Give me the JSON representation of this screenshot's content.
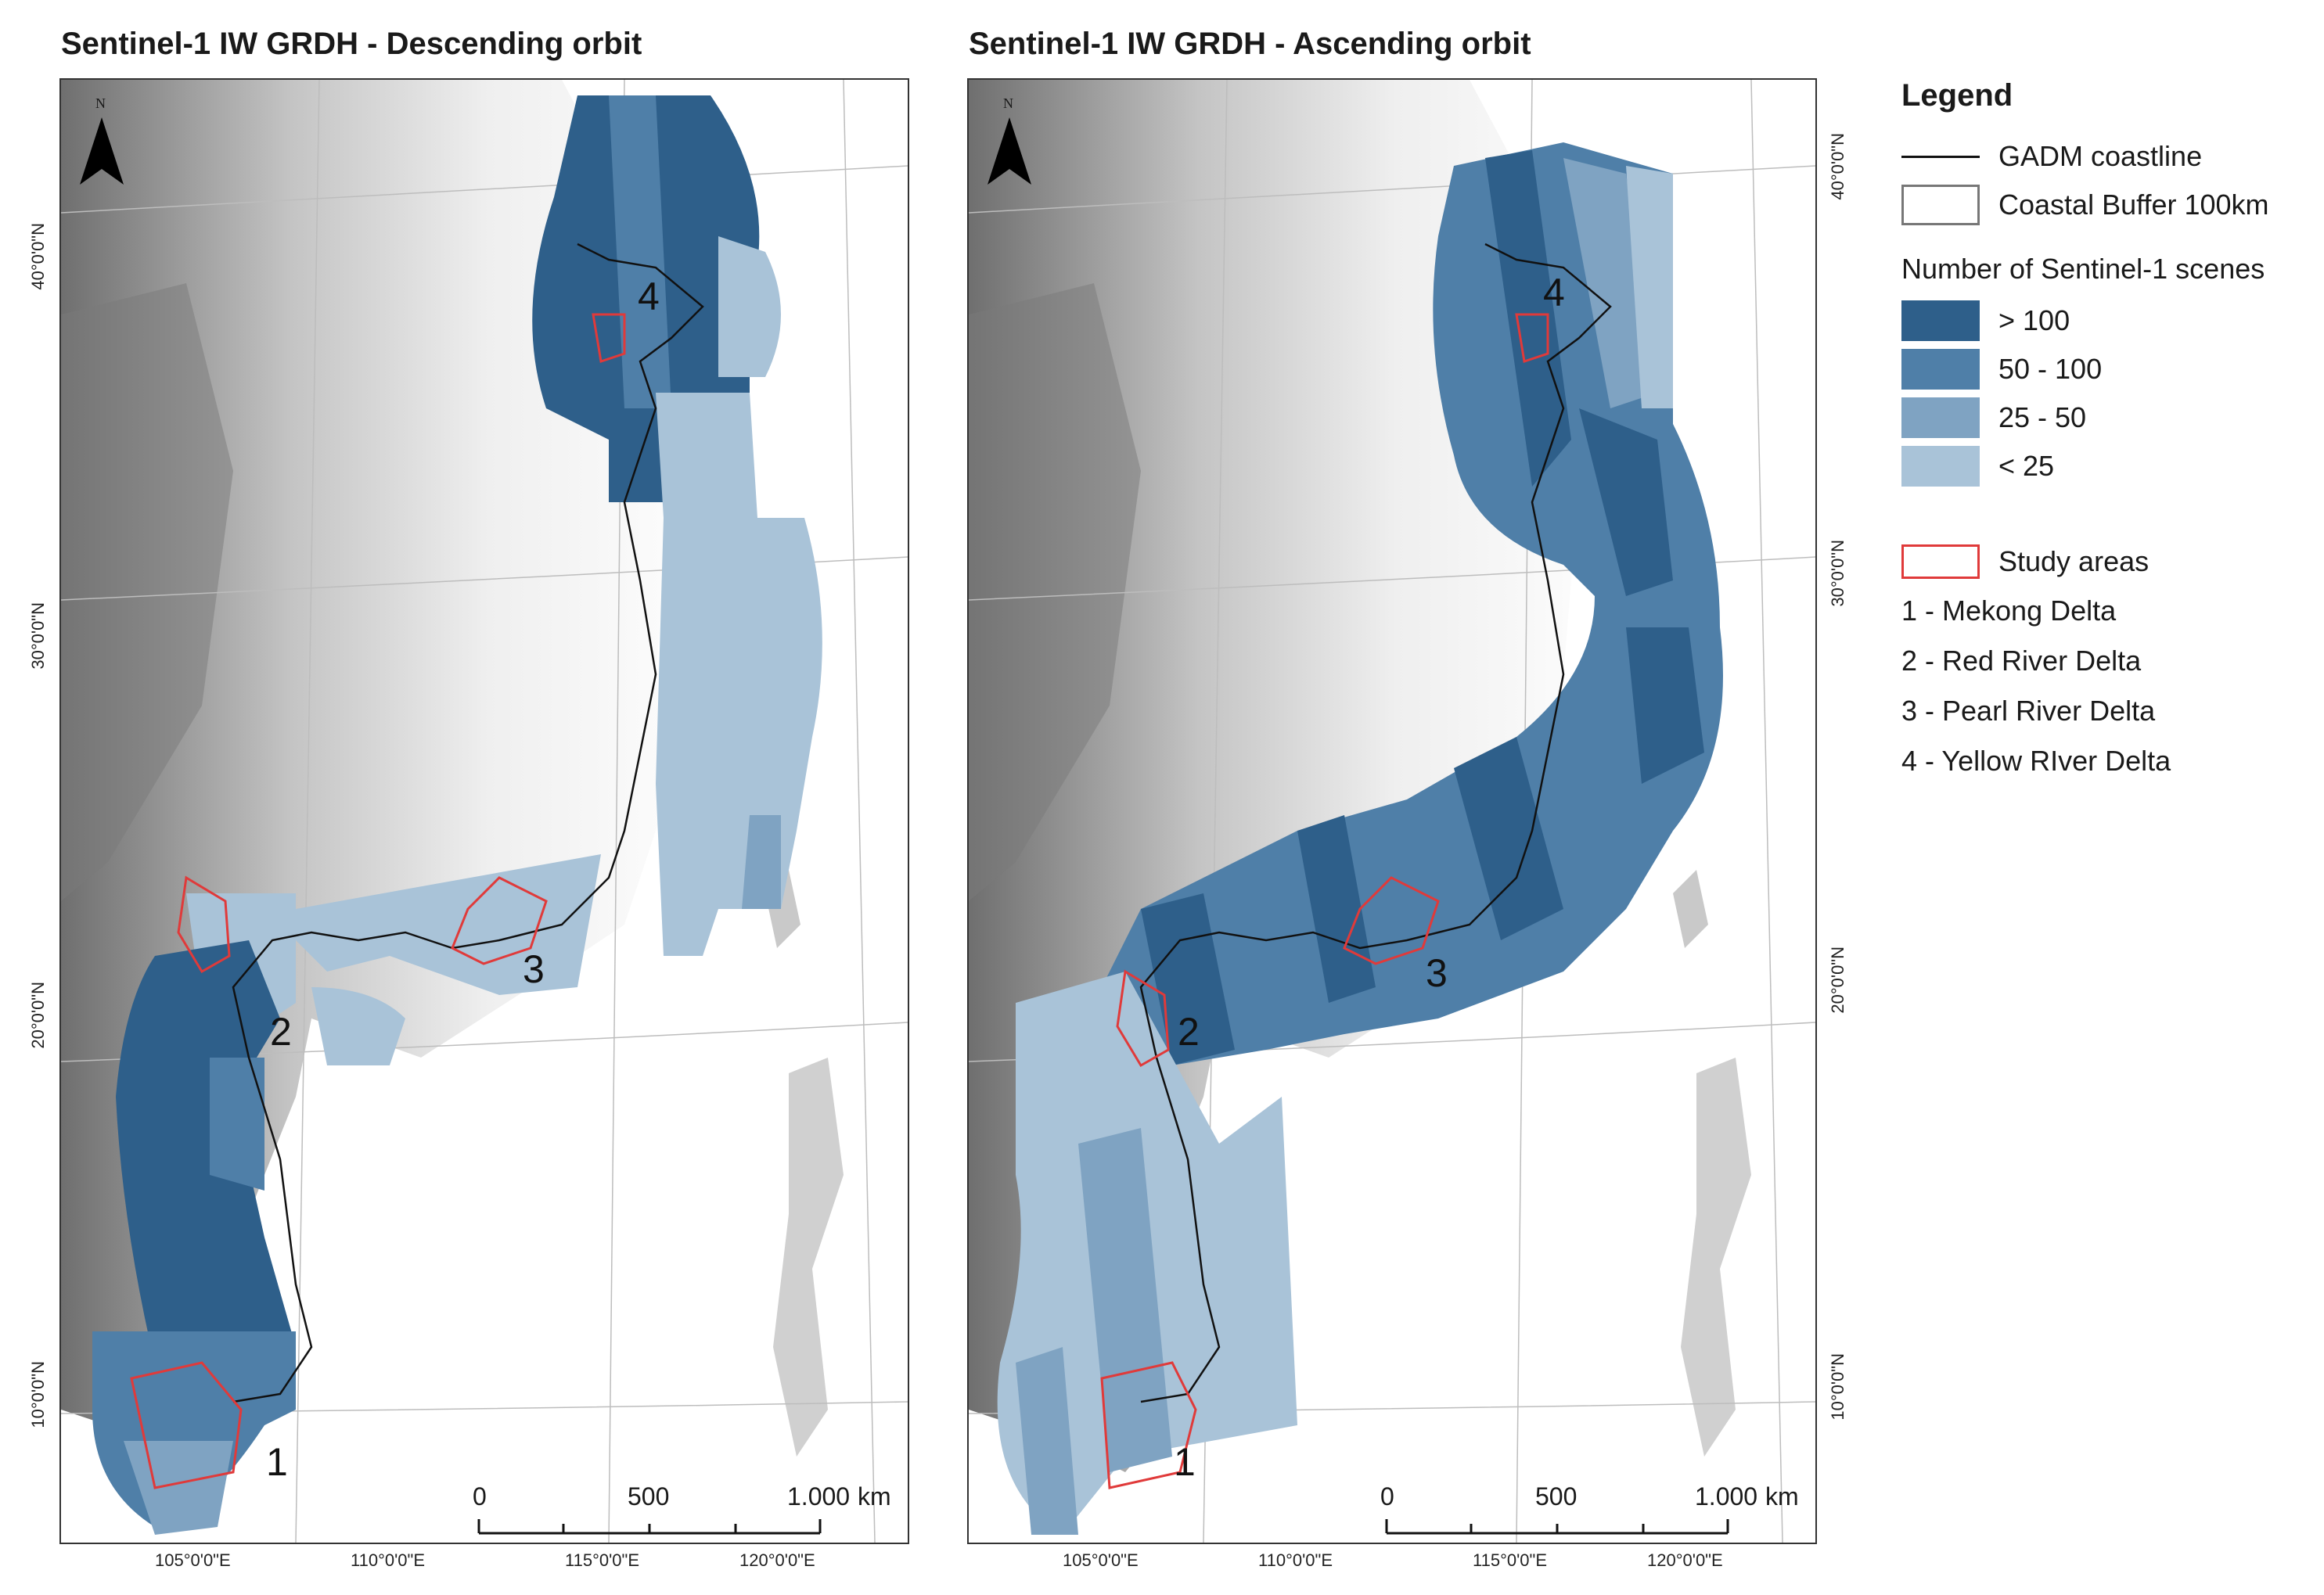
{
  "maps": [
    {
      "title": "Sentinel-1 IW GRDH - Descending orbit",
      "lon_ticks": [
        "105°0'0\"E",
        "110°0'0\"E",
        "115°0'0\"E",
        "120°0'0\"E"
      ],
      "lat_ticks": [
        "40°0'0\"N",
        "30°0'0\"N",
        "20°0'0\"N",
        "10°0'0\"N"
      ],
      "north_label": "N",
      "area_numbers": [
        "1",
        "2",
        "3",
        "4"
      ],
      "scale_labels": [
        "0",
        "500",
        "1.000",
        "km"
      ]
    },
    {
      "title": "Sentinel-1 IW GRDH - Ascending orbit",
      "lon_ticks": [
        "105°0'0\"E",
        "110°0'0\"E",
        "115°0'0\"E",
        "120°0'0\"E"
      ],
      "lat_ticks": [
        "40°0'0\"N",
        "30°0'0\"N",
        "20°0'0\"N",
        "10°0'0\"N"
      ],
      "north_label": "N",
      "area_numbers": [
        "1",
        "2",
        "3",
        "4"
      ],
      "scale_labels": [
        "0",
        "500",
        "1.000",
        "km"
      ]
    }
  ],
  "legend": {
    "title": "Legend",
    "coastline_label": "GADM coastline",
    "buffer_label": "Coastal Buffer 100km",
    "scenes_title": "Number of Sentinel-1 scenes",
    "classes": [
      {
        "label": "> 100",
        "color": "#2e5f8a"
      },
      {
        "label": "50 - 100",
        "color": "#4f7fa8"
      },
      {
        "label": "25 - 50",
        "color": "#7fa3c2"
      },
      {
        "label": "< 25",
        "color": "#a9c3d8"
      }
    ],
    "study_label": "Study areas",
    "study_color": "#e03a3a",
    "study_areas": [
      "1 - Mekong Delta",
      "2 - Red River Delta",
      "3 - Pearl River Delta",
      "4 - Yellow RIver Delta"
    ]
  }
}
